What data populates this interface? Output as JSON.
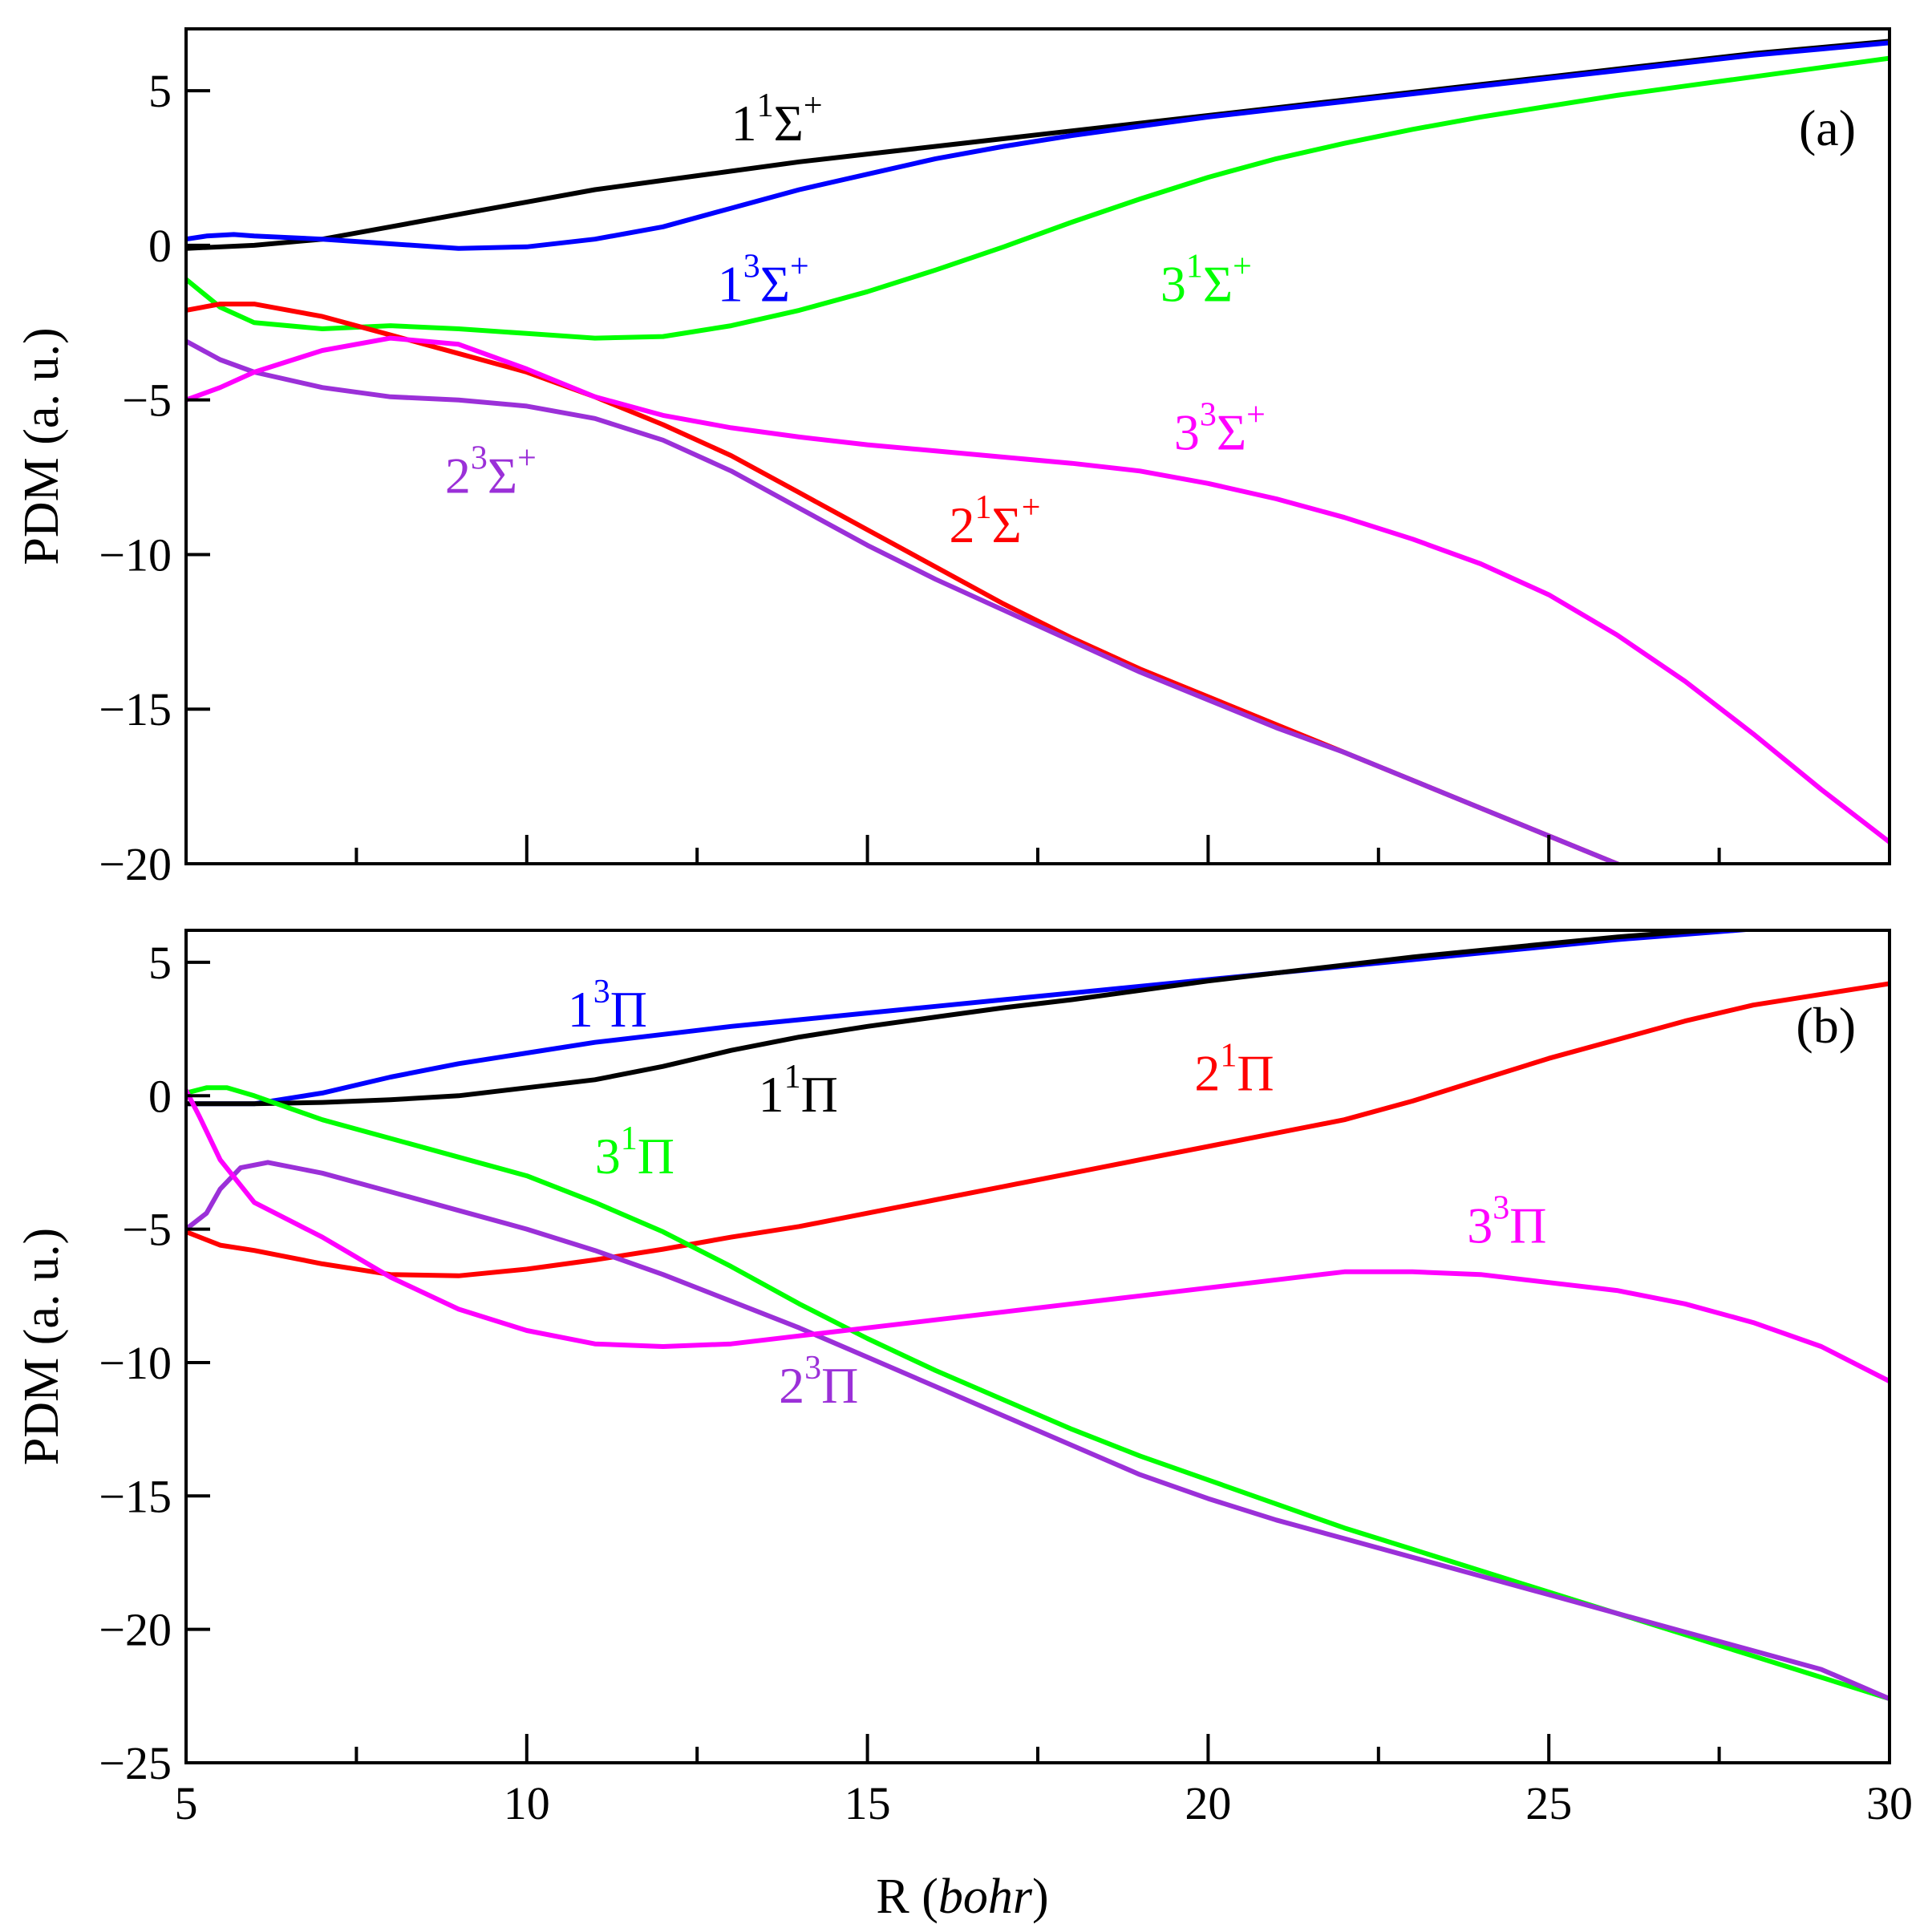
{
  "chart_data": [
    {
      "type": "line",
      "panel_label": "(a)",
      "xlabel": "",
      "ylabel": "PDM (a. u.)",
      "xlim": [
        5,
        30
      ],
      "ylim": [
        -20,
        7
      ],
      "xticks": [
        5,
        10,
        15,
        20,
        25,
        30
      ],
      "xticklabels": [],
      "yticks": [
        5,
        0,
        -5,
        -10,
        -15,
        -20
      ],
      "yticklabels": [
        "5",
        "0",
        "−5",
        "−10",
        "−15",
        "−20"
      ],
      "series": [
        {
          "name": "1_1Sigma+",
          "label": {
            "n": "1",
            "m": "1",
            "sym": "Σ",
            "sup": "+"
          },
          "color": "#000000",
          "label_pos": [
            13.0,
            3.4
          ],
          "x": [
            5,
            6,
            7,
            8,
            9,
            10,
            11,
            12,
            13,
            14,
            15,
            16,
            17,
            18,
            19,
            20,
            21,
            22,
            23,
            24,
            25,
            26,
            27,
            28,
            29,
            30
          ],
          "y": [
            -0.1,
            0.0,
            0.2,
            0.6,
            1.0,
            1.4,
            1.8,
            2.1,
            2.4,
            2.7,
            2.95,
            3.2,
            3.45,
            3.7,
            3.95,
            4.2,
            4.45,
            4.7,
            4.95,
            5.2,
            5.45,
            5.7,
            5.95,
            6.2,
            6.4,
            6.6
          ]
        },
        {
          "name": "1_3Sigma+",
          "label": {
            "n": "1",
            "m": "3",
            "sym": "Σ",
            "sup": "+"
          },
          "color": "#0000ff",
          "label_pos": [
            12.8,
            -1.8
          ],
          "x": [
            5,
            5.3,
            5.7,
            6,
            7,
            8,
            9,
            10,
            11,
            12,
            13,
            14,
            15,
            16,
            17,
            18,
            19,
            20,
            21,
            22,
            23,
            24,
            25,
            26,
            27,
            28,
            29,
            30
          ],
          "y": [
            0.2,
            0.3,
            0.35,
            0.3,
            0.2,
            0.05,
            -0.1,
            -0.05,
            0.2,
            0.6,
            1.2,
            1.8,
            2.3,
            2.8,
            3.2,
            3.55,
            3.85,
            4.15,
            4.4,
            4.65,
            4.9,
            5.15,
            5.4,
            5.65,
            5.9,
            6.15,
            6.35,
            6.55
          ]
        },
        {
          "name": "3_1Sigma+",
          "label": {
            "n": "3",
            "m": "1",
            "sym": "Σ",
            "sup": "+"
          },
          "color": "#00ff00",
          "label_pos": [
            19.3,
            -1.8
          ],
          "x": [
            5,
            5.5,
            6,
            7,
            8,
            9,
            10,
            11,
            12,
            13,
            14,
            15,
            16,
            17,
            18,
            19,
            20,
            21,
            22,
            23,
            24,
            25,
            26,
            27,
            28,
            29,
            30
          ],
          "y": [
            -1.1,
            -2.0,
            -2.5,
            -2.7,
            -2.6,
            -2.7,
            -2.85,
            -3.0,
            -2.95,
            -2.6,
            -2.1,
            -1.5,
            -0.8,
            -0.05,
            0.75,
            1.5,
            2.2,
            2.8,
            3.3,
            3.75,
            4.15,
            4.5,
            4.85,
            5.15,
            5.45,
            5.75,
            6.05
          ]
        },
        {
          "name": "2_1Sigma+",
          "label": {
            "n": "2",
            "m": "1",
            "sym": "Σ",
            "sup": "+"
          },
          "color": "#ff0000",
          "label_pos": [
            16.2,
            -9.6
          ],
          "x": [
            5,
            5.5,
            6,
            7,
            8,
            9,
            10,
            11,
            12,
            13,
            14,
            15,
            16,
            17,
            18,
            19,
            20,
            21,
            22,
            23,
            24,
            25,
            26,
            26.3
          ],
          "y": [
            -2.1,
            -1.9,
            -1.9,
            -2.3,
            -2.9,
            -3.5,
            -4.1,
            -4.9,
            -5.8,
            -6.8,
            -8.0,
            -9.2,
            -10.4,
            -11.6,
            -12.7,
            -13.7,
            -14.6,
            -15.5,
            -16.4,
            -17.3,
            -18.2,
            -19.1,
            -20.0,
            -20.3
          ]
        },
        {
          "name": "2_3Sigma+",
          "label": {
            "n": "2",
            "m": "3",
            "sym": "Σ",
            "sup": "+"
          },
          "color": "#9b30d8",
          "label_pos": [
            8.8,
            -8.0
          ],
          "x": [
            5,
            5.5,
            6,
            7,
            8,
            9,
            10,
            11,
            12,
            13,
            14,
            15,
            16,
            17,
            18,
            19,
            20,
            21,
            22,
            23,
            24,
            25,
            26,
            26.3
          ],
          "y": [
            -3.1,
            -3.7,
            -4.1,
            -4.6,
            -4.9,
            -5.0,
            -5.2,
            -5.6,
            -6.3,
            -7.3,
            -8.5,
            -9.7,
            -10.8,
            -11.8,
            -12.8,
            -13.8,
            -14.7,
            -15.6,
            -16.4,
            -17.3,
            -18.2,
            -19.1,
            -20.0,
            -20.3
          ]
        },
        {
          "name": "3_3Sigma+",
          "label": {
            "n": "3",
            "m": "3",
            "sym": "Σ",
            "sup": "+"
          },
          "color": "#ff00ff",
          "label_pos": [
            19.5,
            -6.6
          ],
          "x": [
            5,
            5.5,
            6,
            7,
            8,
            9,
            10,
            11,
            12,
            13,
            14,
            15,
            16,
            17,
            18,
            19,
            20,
            21,
            22,
            23,
            24,
            25,
            26,
            27,
            28,
            29,
            30
          ],
          "y": [
            -5.0,
            -4.6,
            -4.1,
            -3.4,
            -3.0,
            -3.2,
            -4.0,
            -4.9,
            -5.5,
            -5.9,
            -6.2,
            -6.45,
            -6.65,
            -6.85,
            -7.05,
            -7.3,
            -7.7,
            -8.2,
            -8.8,
            -9.5,
            -10.3,
            -11.3,
            -12.6,
            -14.1,
            -15.8,
            -17.6,
            -19.3
          ]
        }
      ]
    },
    {
      "type": "line",
      "panel_label": "(b)",
      "xlabel_main": "R (",
      "xlabel_italic": "bohr",
      "xlabel_close": ")",
      "ylabel": "PDM (a. u.)",
      "xlim": [
        5,
        30
      ],
      "ylim": [
        -25,
        6.2
      ],
      "xticks": [
        5,
        10,
        15,
        20,
        25,
        30
      ],
      "xticklabels": [
        "5",
        "10",
        "15",
        "20",
        "25",
        "30"
      ],
      "yticks": [
        5,
        0,
        -5,
        -10,
        -15,
        -20,
        -25
      ],
      "yticklabels": [
        "5",
        "0",
        "−5",
        "−10",
        "−15",
        "−20",
        "−25"
      ],
      "series": [
        {
          "name": "1_3Pi",
          "label": {
            "n": "1",
            "m": "3",
            "sym": "Π",
            "sup": ""
          },
          "color": "#0000ff",
          "label_pos": [
            10.6,
            2.6
          ],
          "x": [
            5,
            6,
            7,
            8,
            9,
            10,
            11,
            12,
            13,
            14,
            15,
            16,
            17,
            18,
            19,
            20,
            21,
            22,
            23,
            24,
            25,
            26,
            27,
            28
          ],
          "y": [
            -0.3,
            -0.3,
            0.1,
            0.7,
            1.2,
            1.6,
            2.0,
            2.3,
            2.6,
            2.85,
            3.1,
            3.35,
            3.6,
            3.85,
            4.1,
            4.35,
            4.6,
            4.85,
            5.1,
            5.35,
            5.6,
            5.85,
            6.05,
            6.25
          ]
        },
        {
          "name": "1_1Pi",
          "label": {
            "n": "1",
            "m": "1",
            "sym": "Π",
            "sup": ""
          },
          "color": "#000000",
          "label_pos": [
            13.4,
            -0.6
          ],
          "x": [
            5,
            6,
            7,
            8,
            9,
            10,
            11,
            12,
            13,
            14,
            15,
            16,
            17,
            18,
            19,
            20,
            21,
            22,
            23,
            24,
            25,
            26,
            27,
            28
          ],
          "y": [
            -0.3,
            -0.3,
            -0.25,
            -0.15,
            0.0,
            0.3,
            0.6,
            1.1,
            1.7,
            2.2,
            2.6,
            2.95,
            3.3,
            3.6,
            3.95,
            4.3,
            4.6,
            4.9,
            5.2,
            5.45,
            5.7,
            5.95,
            6.15,
            6.3
          ]
        },
        {
          "name": "2_1Pi",
          "label": {
            "n": "2",
            "m": "1",
            "sym": "Π",
            "sup": ""
          },
          "color": "#ff0000",
          "label_pos": [
            19.8,
            0.2
          ],
          "x": [
            5,
            5.5,
            6,
            7,
            8,
            9,
            10,
            11,
            12,
            13,
            14,
            15,
            16,
            17,
            18,
            19,
            20,
            21,
            22,
            23,
            24,
            25,
            26,
            27,
            28,
            29,
            30
          ],
          "y": [
            -5.1,
            -5.6,
            -5.8,
            -6.3,
            -6.7,
            -6.75,
            -6.5,
            -6.15,
            -5.75,
            -5.3,
            -4.9,
            -4.4,
            -3.9,
            -3.4,
            -2.9,
            -2.4,
            -1.9,
            -1.4,
            -0.9,
            -0.2,
            0.6,
            1.4,
            2.1,
            2.8,
            3.4,
            3.8,
            4.2
          ]
        },
        {
          "name": "3_1Pi",
          "label": {
            "n": "3",
            "m": "1",
            "sym": "Π",
            "sup": ""
          },
          "color": "#00ff00",
          "label_pos": [
            11.0,
            -2.9
          ],
          "x": [
            5,
            5.3,
            5.6,
            6,
            7,
            8,
            9,
            10,
            11,
            12,
            13,
            14,
            15,
            16,
            17,
            18,
            19,
            20,
            21,
            22,
            23,
            24,
            25,
            26,
            27,
            28,
            29,
            30
          ],
          "y": [
            0.1,
            0.3,
            0.3,
            0.0,
            -0.9,
            -1.6,
            -2.3,
            -3.0,
            -4.0,
            -5.1,
            -6.4,
            -7.8,
            -9.1,
            -10.3,
            -11.4,
            -12.5,
            -13.5,
            -14.4,
            -15.3,
            -16.2,
            -17.0,
            -17.8,
            -18.6,
            -19.4,
            -20.2,
            -21.0,
            -21.8,
            -22.6
          ]
        },
        {
          "name": "2_3Pi",
          "label": {
            "n": "2",
            "m": "3",
            "sym": "Π",
            "sup": ""
          },
          "color": "#9b30d8",
          "label_pos": [
            13.7,
            -11.5
          ],
          "x": [
            5,
            5.3,
            5.5,
            5.8,
            6.2,
            7,
            8,
            9,
            10,
            11,
            12,
            13,
            14,
            15,
            16,
            17,
            18,
            19,
            20,
            21,
            22,
            23,
            24,
            25,
            26,
            27,
            28,
            29,
            30
          ],
          "y": [
            -5.0,
            -4.4,
            -3.5,
            -2.7,
            -2.5,
            -2.9,
            -3.6,
            -4.3,
            -5.0,
            -5.8,
            -6.7,
            -7.7,
            -8.7,
            -9.8,
            -10.9,
            -12.0,
            -13.1,
            -14.2,
            -15.1,
            -15.9,
            -16.6,
            -17.3,
            -18.0,
            -18.7,
            -19.4,
            -20.1,
            -20.8,
            -21.5,
            -22.6
          ]
        },
        {
          "name": "3_3Pi",
          "label": {
            "n": "3",
            "m": "3",
            "sym": "Π",
            "sup": ""
          },
          "color": "#ff00ff",
          "label_pos": [
            23.8,
            -5.5
          ],
          "x": [
            5,
            5.2,
            5.5,
            6,
            7,
            8,
            9,
            10,
            11,
            12,
            13,
            14,
            15,
            16,
            17,
            18,
            19,
            20,
            21,
            22,
            23,
            24,
            25,
            26,
            27,
            28,
            29,
            30
          ],
          "y": [
            0.2,
            -0.8,
            -2.4,
            -4.0,
            -5.3,
            -6.8,
            -8.0,
            -8.8,
            -9.3,
            -9.4,
            -9.3,
            -9.0,
            -8.7,
            -8.4,
            -8.1,
            -7.8,
            -7.5,
            -7.2,
            -6.9,
            -6.6,
            -6.6,
            -6.7,
            -7.0,
            -7.3,
            -7.8,
            -8.5,
            -9.4,
            -10.7
          ]
        }
      ]
    }
  ]
}
